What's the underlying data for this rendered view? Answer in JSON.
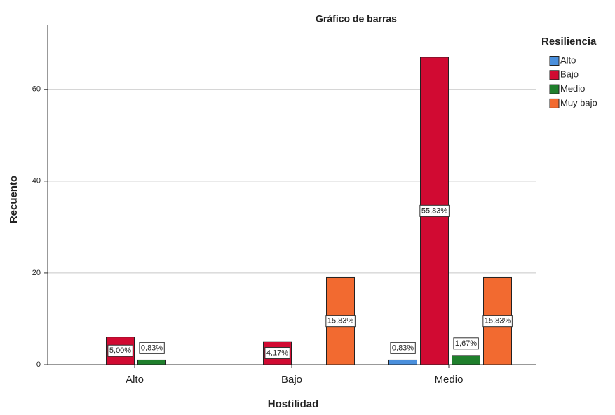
{
  "chart_data": {
    "type": "bar",
    "title": "Gráfico de barras",
    "x_label": "Hostilidad",
    "y_label": "Recuento",
    "legend_title": "Resiliencia",
    "categories": [
      "Alto",
      "Bajo",
      "Medio"
    ],
    "series": [
      {
        "name": "Alto",
        "color": "#4a8fdc",
        "values": [
          null,
          null,
          1
        ],
        "value_labels": [
          null,
          null,
          "0,83%"
        ]
      },
      {
        "name": "Bajo",
        "color": "#d10a32",
        "values": [
          6,
          5,
          67
        ],
        "value_labels": [
          "5,00%",
          "4,17%",
          "55,83%"
        ]
      },
      {
        "name": "Medio",
        "color": "#1f7f2c",
        "values": [
          1,
          null,
          2
        ],
        "value_labels": [
          "0,83%",
          null,
          "1,67%"
        ]
      },
      {
        "name": "Muy bajo",
        "color": "#f26a30",
        "values": [
          null,
          19,
          19
        ],
        "value_labels": [
          null,
          "15,83%",
          "15,83%"
        ]
      }
    ],
    "ylim": [
      0,
      74
    ],
    "yticks": [
      0,
      20,
      40,
      60
    ],
    "grid": true,
    "legend": "right"
  }
}
